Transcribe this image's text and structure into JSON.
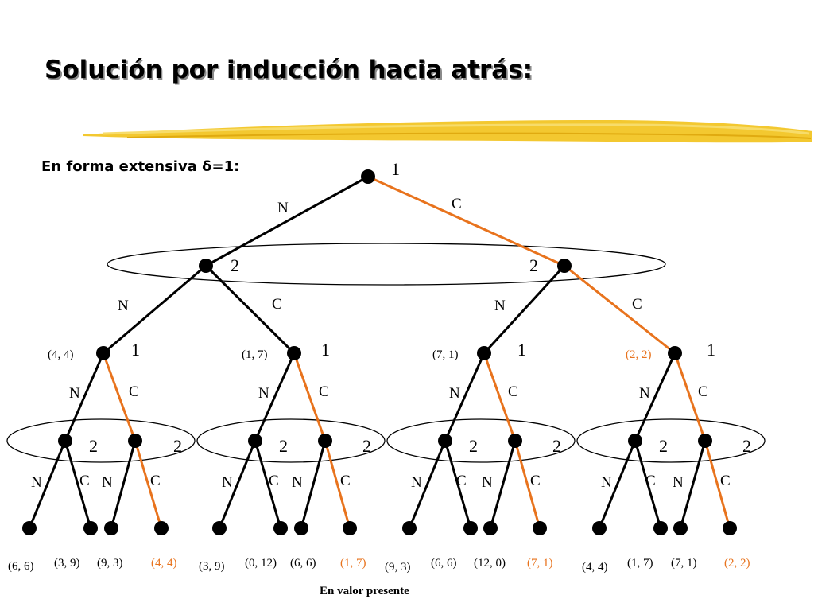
{
  "title": "Solución por inducción hacia atrás:",
  "subtitle": {
    "prefix": "En forma extensiva ",
    "delta": "δ",
    "suffix": "=1:"
  },
  "footer": "En valor presente",
  "colors": {
    "highlight": "#e8731d",
    "branch": "#000000",
    "accent_bar": "#f2c21a"
  },
  "root": {
    "player": "1",
    "left": "N",
    "right": "C"
  },
  "level2": [
    {
      "player": "2",
      "left": "N",
      "right": "C"
    },
    {
      "player": "2",
      "left": "N",
      "right": "C"
    }
  ],
  "level3": [
    {
      "player": "1",
      "value": "(4, 4)",
      "left": "N",
      "right": "C"
    },
    {
      "player": "1",
      "value": "(1, 7)",
      "left": "N",
      "right": "C"
    },
    {
      "player": "1",
      "value": "(7, 1)",
      "left": "N",
      "right": "C"
    },
    {
      "player": "1",
      "value": "(2, 2)",
      "left": "N",
      "right": "C"
    }
  ],
  "level4": [
    {
      "player": "2",
      "left": "N",
      "right": "C"
    },
    {
      "player": "2",
      "left": "N",
      "right": "C"
    },
    {
      "player": "2",
      "left": "N",
      "right": "C"
    },
    {
      "player": "2",
      "left": "N",
      "right": "C"
    },
    {
      "player": "2",
      "left": "N",
      "right": "C"
    },
    {
      "player": "2",
      "left": "N",
      "right": "C"
    },
    {
      "player": "2",
      "left": "N",
      "right": "C"
    },
    {
      "player": "2",
      "left": "N",
      "right": "C"
    }
  ],
  "payoffs": [
    "(6, 6)",
    "(3, 9)",
    "(9, 3)",
    "(4, 4)",
    "(3, 9)",
    "(0, 12)",
    "(6, 6)",
    "(1, 7)",
    "(9, 3)",
    "(6, 6)",
    "(12, 0)",
    "(7, 1)",
    "(4, 4)",
    "(1, 7)",
    "(7, 1)",
    "(2, 2)"
  ]
}
